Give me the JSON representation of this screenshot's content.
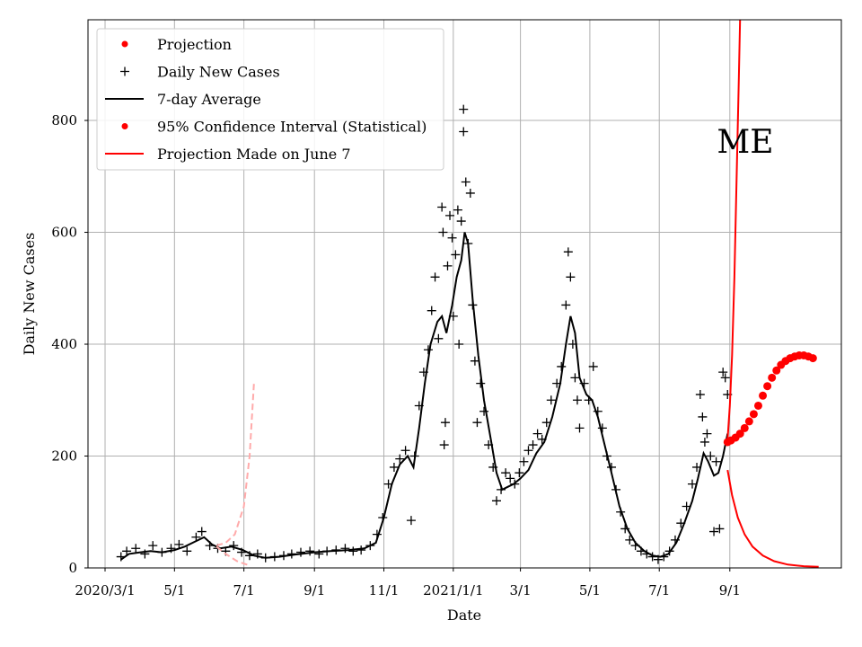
{
  "chart_data": {
    "type": "line",
    "title": "",
    "xlabel": "Date",
    "ylabel": "Daily New Cases",
    "annotation": "ME",
    "grid": true,
    "legend_position": "top-left",
    "x_range": [
      "2020-02-15",
      "2021-12-08"
    ],
    "ylim": [
      0,
      980
    ],
    "x_ticks": [
      {
        "date": "2020-03-01",
        "label": "2020/3/1"
      },
      {
        "date": "2020-05-01",
        "label": "5/1"
      },
      {
        "date": "2020-07-01",
        "label": "7/1"
      },
      {
        "date": "2020-09-01",
        "label": "9/1"
      },
      {
        "date": "2020-11-01",
        "label": "11/1"
      },
      {
        "date": "2021-01-01",
        "label": "2021/1/1"
      },
      {
        "date": "2021-03-01",
        "label": "3/1"
      },
      {
        "date": "2021-05-01",
        "label": "5/1"
      },
      {
        "date": "2021-07-01",
        "label": "7/1"
      },
      {
        "date": "2021-09-01",
        "label": "9/1"
      }
    ],
    "y_ticks": [
      0,
      200,
      400,
      600,
      800
    ],
    "legend": [
      {
        "label": "Projection",
        "marker": "dot",
        "color": "#ff0000"
      },
      {
        "label": "Daily New Cases",
        "marker": "plus",
        "color": "#000000"
      },
      {
        "label": "7-day Average",
        "marker": "line",
        "color": "#000000"
      },
      {
        "label": "95% Confidence Interval (Statistical)",
        "marker": "dot",
        "color": "#ff0000"
      },
      {
        "label": "Projection Made on June 7",
        "marker": "line",
        "color": "#ff0000"
      }
    ],
    "series": [
      {
        "name": "Daily New Cases",
        "style": "plus",
        "color": "#000000",
        "points": [
          [
            "2020-03-15",
            20
          ],
          [
            "2020-03-20",
            30
          ],
          [
            "2020-03-28",
            35
          ],
          [
            "2020-04-05",
            25
          ],
          [
            "2020-04-12",
            40
          ],
          [
            "2020-04-20",
            28
          ],
          [
            "2020-04-28",
            35
          ],
          [
            "2020-05-05",
            42
          ],
          [
            "2020-05-12",
            30
          ],
          [
            "2020-05-20",
            55
          ],
          [
            "2020-05-25",
            65
          ],
          [
            "2020-06-01",
            40
          ],
          [
            "2020-06-08",
            35
          ],
          [
            "2020-06-15",
            30
          ],
          [
            "2020-06-22",
            40
          ],
          [
            "2020-06-29",
            28
          ],
          [
            "2020-07-06",
            22
          ],
          [
            "2020-07-13",
            25
          ],
          [
            "2020-07-20",
            18
          ],
          [
            "2020-07-28",
            20
          ],
          [
            "2020-08-05",
            22
          ],
          [
            "2020-08-12",
            25
          ],
          [
            "2020-08-20",
            28
          ],
          [
            "2020-08-28",
            30
          ],
          [
            "2020-09-05",
            25
          ],
          [
            "2020-09-12",
            30
          ],
          [
            "2020-09-20",
            32
          ],
          [
            "2020-09-28",
            35
          ],
          [
            "2020-10-05",
            30
          ],
          [
            "2020-10-12",
            32
          ],
          [
            "2020-10-20",
            40
          ],
          [
            "2020-10-26",
            60
          ],
          [
            "2020-10-31",
            90
          ],
          [
            "2020-11-05",
            150
          ],
          [
            "2020-11-10",
            180
          ],
          [
            "2020-11-15",
            195
          ],
          [
            "2020-11-20",
            210
          ],
          [
            "2020-11-25",
            85
          ],
          [
            "2020-11-28",
            200
          ],
          [
            "2020-12-02",
            290
          ],
          [
            "2020-12-06",
            350
          ],
          [
            "2020-12-10",
            390
          ],
          [
            "2020-12-13",
            460
          ],
          [
            "2020-12-16",
            520
          ],
          [
            "2020-12-19",
            410
          ],
          [
            "2020-12-22",
            645
          ],
          [
            "2020-12-23",
            600
          ],
          [
            "2020-12-24",
            220
          ],
          [
            "2020-12-25",
            260
          ],
          [
            "2020-12-27",
            540
          ],
          [
            "2020-12-29",
            630
          ],
          [
            "2020-12-31",
            590
          ],
          [
            "2021-01-01",
            450
          ],
          [
            "2021-01-03",
            560
          ],
          [
            "2021-01-05",
            640
          ],
          [
            "2021-01-06",
            400
          ],
          [
            "2021-01-08",
            620
          ],
          [
            "2021-01-10",
            820
          ],
          [
            "2021-01-10",
            780
          ],
          [
            "2021-01-12",
            690
          ],
          [
            "2021-01-14",
            580
          ],
          [
            "2021-01-16",
            670
          ],
          [
            "2021-01-18",
            470
          ],
          [
            "2021-01-20",
            370
          ],
          [
            "2021-01-22",
            260
          ],
          [
            "2021-01-25",
            330
          ],
          [
            "2021-01-28",
            280
          ],
          [
            "2021-02-01",
            220
          ],
          [
            "2021-02-05",
            180
          ],
          [
            "2021-02-08",
            120
          ],
          [
            "2021-02-12",
            140
          ],
          [
            "2021-02-16",
            170
          ],
          [
            "2021-02-20",
            160
          ],
          [
            "2021-02-24",
            150
          ],
          [
            "2021-02-28",
            170
          ],
          [
            "2021-03-04",
            190
          ],
          [
            "2021-03-08",
            210
          ],
          [
            "2021-03-12",
            220
          ],
          [
            "2021-03-16",
            240
          ],
          [
            "2021-03-20",
            230
          ],
          [
            "2021-03-24",
            260
          ],
          [
            "2021-03-28",
            300
          ],
          [
            "2021-04-02",
            330
          ],
          [
            "2021-04-06",
            360
          ],
          [
            "2021-04-10",
            470
          ],
          [
            "2021-04-12",
            565
          ],
          [
            "2021-04-14",
            520
          ],
          [
            "2021-04-16",
            400
          ],
          [
            "2021-04-18",
            340
          ],
          [
            "2021-04-20",
            300
          ],
          [
            "2021-04-22",
            250
          ],
          [
            "2021-04-26",
            330
          ],
          [
            "2021-04-30",
            300
          ],
          [
            "2021-05-04",
            360
          ],
          [
            "2021-05-08",
            280
          ],
          [
            "2021-05-12",
            250
          ],
          [
            "2021-05-16",
            200
          ],
          [
            "2021-05-20",
            180
          ],
          [
            "2021-05-24",
            140
          ],
          [
            "2021-05-28",
            100
          ],
          [
            "2021-06-01",
            70
          ],
          [
            "2021-06-05",
            50
          ],
          [
            "2021-06-10",
            40
          ],
          [
            "2021-06-15",
            30
          ],
          [
            "2021-06-20",
            25
          ],
          [
            "2021-06-25",
            20
          ],
          [
            "2021-06-30",
            15
          ],
          [
            "2021-07-05",
            20
          ],
          [
            "2021-07-10",
            30
          ],
          [
            "2021-07-15",
            50
          ],
          [
            "2021-07-20",
            80
          ],
          [
            "2021-07-25",
            110
          ],
          [
            "2021-07-30",
            150
          ],
          [
            "2021-08-03",
            180
          ],
          [
            "2021-08-06",
            310
          ],
          [
            "2021-08-08",
            270
          ],
          [
            "2021-08-10",
            225
          ],
          [
            "2021-08-12",
            240
          ],
          [
            "2021-08-15",
            200
          ],
          [
            "2021-08-18",
            65
          ],
          [
            "2021-08-20",
            190
          ],
          [
            "2021-08-23",
            70
          ],
          [
            "2021-08-26",
            350
          ],
          [
            "2021-08-28",
            340
          ],
          [
            "2021-08-30",
            310
          ]
        ]
      },
      {
        "name": "7-day Average",
        "style": "line",
        "color": "#000000",
        "points": [
          [
            "2020-03-15",
            15
          ],
          [
            "2020-03-22",
            25
          ],
          [
            "2020-04-01",
            28
          ],
          [
            "2020-04-10",
            30
          ],
          [
            "2020-04-20",
            28
          ],
          [
            "2020-05-01",
            32
          ],
          [
            "2020-05-10",
            38
          ],
          [
            "2020-05-20",
            48
          ],
          [
            "2020-05-27",
            55
          ],
          [
            "2020-06-03",
            42
          ],
          [
            "2020-06-10",
            35
          ],
          [
            "2020-06-20",
            38
          ],
          [
            "2020-06-30",
            32
          ],
          [
            "2020-07-10",
            22
          ],
          [
            "2020-07-20",
            18
          ],
          [
            "2020-08-01",
            20
          ],
          [
            "2020-08-15",
            24
          ],
          [
            "2020-09-01",
            28
          ],
          [
            "2020-09-15",
            30
          ],
          [
            "2020-10-01",
            32
          ],
          [
            "2020-10-15",
            35
          ],
          [
            "2020-10-25",
            45
          ],
          [
            "2020-11-01",
            90
          ],
          [
            "2020-11-08",
            150
          ],
          [
            "2020-11-15",
            185
          ],
          [
            "2020-11-22",
            200
          ],
          [
            "2020-11-27",
            180
          ],
          [
            "2020-12-02",
            250
          ],
          [
            "2020-12-07",
            330
          ],
          [
            "2020-12-12",
            400
          ],
          [
            "2020-12-18",
            440
          ],
          [
            "2020-12-22",
            450
          ],
          [
            "2020-12-26",
            420
          ],
          [
            "2020-12-31",
            470
          ],
          [
            "2021-01-04",
            520
          ],
          [
            "2021-01-08",
            550
          ],
          [
            "2021-01-11",
            600
          ],
          [
            "2021-01-14",
            580
          ],
          [
            "2021-01-18",
            480
          ],
          [
            "2021-01-23",
            380
          ],
          [
            "2021-01-28",
            300
          ],
          [
            "2021-02-03",
            230
          ],
          [
            "2021-02-08",
            170
          ],
          [
            "2021-02-13",
            140
          ],
          [
            "2021-02-18",
            145
          ],
          [
            "2021-02-23",
            150
          ],
          [
            "2021-03-01",
            160
          ],
          [
            "2021-03-08",
            175
          ],
          [
            "2021-03-15",
            205
          ],
          [
            "2021-03-22",
            225
          ],
          [
            "2021-03-29",
            270
          ],
          [
            "2021-04-05",
            330
          ],
          [
            "2021-04-10",
            400
          ],
          [
            "2021-04-14",
            450
          ],
          [
            "2021-04-18",
            420
          ],
          [
            "2021-04-22",
            340
          ],
          [
            "2021-04-28",
            310
          ],
          [
            "2021-05-03",
            300
          ],
          [
            "2021-05-08",
            270
          ],
          [
            "2021-05-14",
            220
          ],
          [
            "2021-05-20",
            170
          ],
          [
            "2021-05-27",
            110
          ],
          [
            "2021-06-03",
            70
          ],
          [
            "2021-06-10",
            45
          ],
          [
            "2021-06-18",
            30
          ],
          [
            "2021-06-25",
            22
          ],
          [
            "2021-07-02",
            20
          ],
          [
            "2021-07-09",
            25
          ],
          [
            "2021-07-16",
            45
          ],
          [
            "2021-07-23",
            80
          ],
          [
            "2021-07-30",
            120
          ],
          [
            "2021-08-04",
            160
          ],
          [
            "2021-08-09",
            205
          ],
          [
            "2021-08-13",
            190
          ],
          [
            "2021-08-18",
            165
          ],
          [
            "2021-08-22",
            170
          ],
          [
            "2021-08-26",
            200
          ],
          [
            "2021-08-30",
            240
          ]
        ]
      },
      {
        "name": "Projection",
        "style": "dot",
        "color": "#ff0000",
        "points": [
          [
            "2021-08-30",
            225
          ],
          [
            "2021-09-02",
            228
          ],
          [
            "2021-09-06",
            233
          ],
          [
            "2021-09-10",
            240
          ],
          [
            "2021-09-14",
            250
          ],
          [
            "2021-09-18",
            262
          ],
          [
            "2021-09-22",
            275
          ],
          [
            "2021-09-26",
            290
          ],
          [
            "2021-09-30",
            308
          ],
          [
            "2021-10-04",
            325
          ],
          [
            "2021-10-08",
            340
          ],
          [
            "2021-10-12",
            353
          ],
          [
            "2021-10-16",
            363
          ],
          [
            "2021-10-20",
            370
          ],
          [
            "2021-10-24",
            375
          ],
          [
            "2021-10-28",
            378
          ],
          [
            "2021-11-01",
            380
          ],
          [
            "2021-11-05",
            380
          ],
          [
            "2021-11-09",
            378
          ],
          [
            "2021-11-13",
            375
          ]
        ]
      },
      {
        "name": "95% Confidence Interval (Statistical)",
        "style": "line",
        "color": "#ff0000",
        "bands": [
          {
            "name": "upper",
            "points": [
              [
                "2021-08-30",
                230
              ],
              [
                "2021-09-01",
                290
              ],
              [
                "2021-09-03",
                380
              ],
              [
                "2021-09-05",
                520
              ],
              [
                "2021-09-07",
                700
              ],
              [
                "2021-09-09",
                880
              ],
              [
                "2021-09-10",
                980
              ]
            ]
          },
          {
            "name": "lower",
            "points": [
              [
                "2021-08-30",
                175
              ],
              [
                "2021-09-03",
                130
              ],
              [
                "2021-09-08",
                90
              ],
              [
                "2021-09-14",
                60
              ],
              [
                "2021-09-21",
                38
              ],
              [
                "2021-09-30",
                22
              ],
              [
                "2021-10-10",
                12
              ],
              [
                "2021-10-22",
                6
              ],
              [
                "2021-11-05",
                3
              ],
              [
                "2021-11-18",
                2
              ]
            ]
          }
        ]
      },
      {
        "name": "Projection Made on June 7",
        "style": "dashed",
        "color": "#ffaaaa",
        "bands": [
          {
            "name": "upper",
            "points": [
              [
                "2020-06-07",
                40
              ],
              [
                "2020-06-15",
                45
              ],
              [
                "2020-06-23",
                60
              ],
              [
                "2020-07-01",
                110
              ],
              [
                "2020-07-06",
                200
              ],
              [
                "2020-07-10",
                335
              ]
            ]
          },
          {
            "name": "lower",
            "points": [
              [
                "2020-06-07",
                38
              ],
              [
                "2020-06-15",
                25
              ],
              [
                "2020-06-25",
                12
              ],
              [
                "2020-07-05",
                5
              ]
            ]
          }
        ]
      }
    ]
  }
}
